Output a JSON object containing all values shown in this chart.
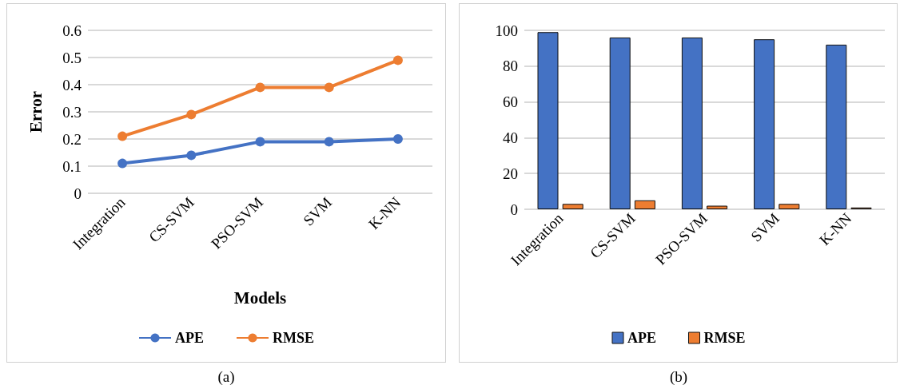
{
  "chart_data": [
    {
      "type": "line",
      "xlabel": "Models",
      "ylabel": "Error",
      "categories": [
        "Integration",
        "CS-SVM",
        "PSO-SVM",
        "SVM",
        "K-NN"
      ],
      "series": [
        {
          "name": "APE",
          "color": "#4472c4",
          "values": [
            0.11,
            0.14,
            0.19,
            0.19,
            0.2
          ]
        },
        {
          "name": "RMSE",
          "color": "#ed7d31",
          "values": [
            0.21,
            0.29,
            0.39,
            0.39,
            0.49
          ]
        }
      ],
      "ylim": [
        0,
        0.6
      ],
      "yticks": [
        0,
        0.1,
        0.2,
        0.3,
        0.4,
        0.5,
        0.6
      ],
      "grid": "y",
      "legend": "bottom",
      "marker": "circle",
      "annotations": [
        "(a)"
      ]
    },
    {
      "type": "bar",
      "categories": [
        "Integration",
        "CS-SVM",
        "PSO-SVM",
        "SVM",
        "K-NN"
      ],
      "series": [
        {
          "name": "APE",
          "color": "#4472c4",
          "values": [
            99,
            96,
            96,
            95,
            92
          ]
        },
        {
          "name": "RMSE",
          "color": "#ed7d31",
          "values": [
            3,
            5,
            2,
            3,
            1
          ]
        }
      ],
      "ylim": [
        0,
        100
      ],
      "yticks": [
        0,
        20,
        40,
        60,
        80,
        100
      ],
      "grid": "y",
      "legend": "bottom",
      "annotations": [
        "(b)"
      ]
    }
  ]
}
